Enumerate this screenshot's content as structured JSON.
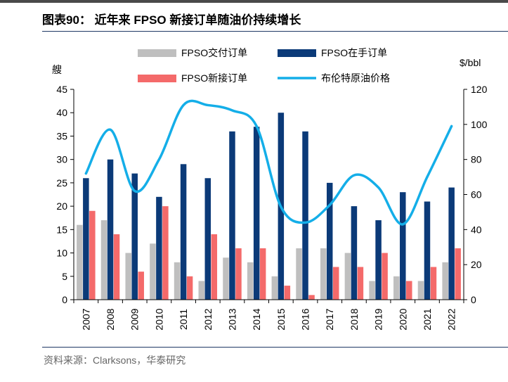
{
  "title": "图表90：  近年来 FPSO 新接订单随油价持续增长",
  "source": "资料来源：Clarksons，华泰研究",
  "chart_data": {
    "type": "bar",
    "categories": [
      "2007",
      "2008",
      "2009",
      "2010",
      "2011",
      "2012",
      "2013",
      "2014",
      "2015",
      "2016",
      "2017",
      "2018",
      "2019",
      "2020",
      "2021",
      "2022"
    ],
    "series": [
      {
        "name": "FPSO交付订单",
        "type": "bar",
        "axis": "left",
        "color": "#bfbfbf",
        "values": [
          16,
          17,
          10,
          12,
          8,
          4,
          9,
          8,
          5,
          11,
          11,
          10,
          4,
          5,
          4,
          8
        ]
      },
      {
        "name": "FPSO在手订单",
        "type": "bar",
        "axis": "left",
        "color": "#0b3a78",
        "values": [
          26,
          30,
          27,
          22,
          29,
          26,
          36,
          37,
          40,
          36,
          25,
          20,
          17,
          23,
          21,
          24
        ]
      },
      {
        "name": "FPSO新接订单",
        "type": "bar",
        "axis": "left",
        "color": "#f46a6a",
        "values": [
          19,
          14,
          6,
          20,
          5,
          14,
          11,
          11,
          3,
          1,
          7,
          7,
          10,
          4,
          7,
          11
        ]
      },
      {
        "name": "布伦特原油价格",
        "type": "line",
        "axis": "right",
        "color": "#14aee8",
        "values": [
          72,
          97,
          62,
          80,
          111,
          111,
          108,
          99,
          53,
          44,
          54,
          71,
          64,
          43,
          70,
          99
        ]
      }
    ],
    "ylabel_left": "艘",
    "ylabel_right": "$/bbl",
    "ylim_left": [
      0,
      45
    ],
    "yticks_left": [
      0,
      5,
      10,
      15,
      20,
      25,
      30,
      35,
      40,
      45
    ],
    "ylim_right": [
      0,
      120
    ],
    "yticks_right": [
      0,
      20,
      40,
      60,
      80,
      100,
      120
    ],
    "grid": false,
    "legend": "top"
  }
}
